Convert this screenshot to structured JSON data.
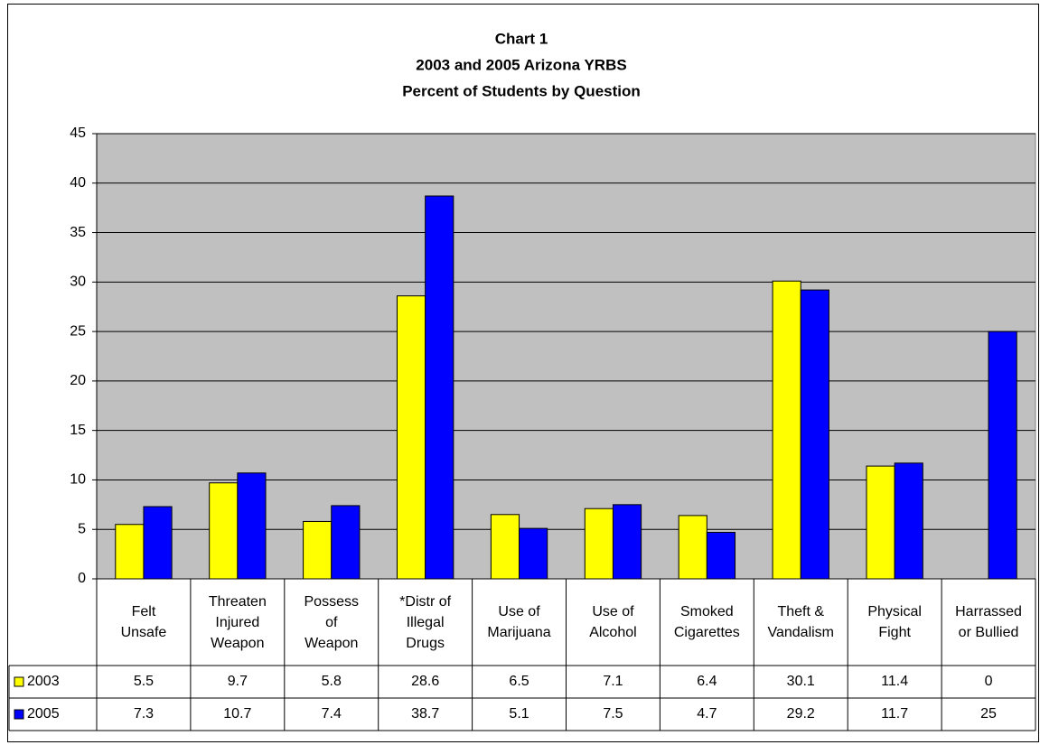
{
  "chart_data": {
    "type": "bar",
    "title": [
      "Chart 1",
      "2003 and 2005 Arizona YRBS",
      "Percent of Students by Question"
    ],
    "categories": [
      "Felt\nUnsafe",
      "Threaten\nInjured\nWeapon",
      "Possess\nof\nWeapon",
      "*Distr of\nIllegal\nDrugs",
      "Use of\nMarijuana",
      "Use of\nAlcohol",
      "Smoked\nCigarettes",
      "Theft &\nVandalism",
      "Physical\nFight",
      "Harrassed\nor Bullied"
    ],
    "series": [
      {
        "name": "2003",
        "color": "#ffff00",
        "values": [
          5.5,
          9.7,
          5.8,
          28.6,
          6.5,
          7.1,
          6.4,
          30.1,
          11.4,
          0
        ]
      },
      {
        "name": "2005",
        "color": "#0000ff",
        "values": [
          7.3,
          10.7,
          7.4,
          38.7,
          5.1,
          7.5,
          4.7,
          29.2,
          11.7,
          25
        ]
      }
    ],
    "ylim": [
      0,
      45
    ],
    "yticks": [
      0,
      5,
      10,
      15,
      20,
      25,
      30,
      35,
      40,
      45
    ],
    "grid": true,
    "plot_background": "#c0c0c0",
    "data_table": true
  }
}
